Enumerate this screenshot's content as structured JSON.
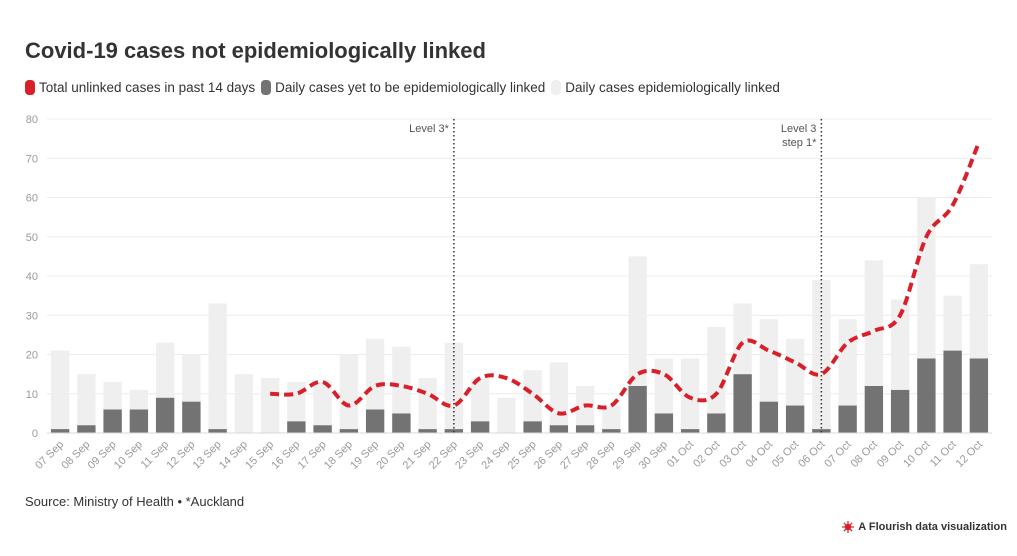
{
  "title": "Covid-19 cases not epidemiologically linked",
  "legend": [
    {
      "label": "Total unlinked cases in past 14 days",
      "color": "#d8202a"
    },
    {
      "label": "Daily cases yet to be epidemiologically linked",
      "color": "#737373"
    },
    {
      "label": "Daily cases epidemiologically linked",
      "color": "#efefef"
    }
  ],
  "source": "Source: Ministry of Health • *Auckland",
  "credit": "A Flourish data visualization",
  "chart_data": {
    "type": "bar",
    "stacked": true,
    "title": "Covid-19 cases not epidemiologically linked",
    "ylim": [
      0,
      80
    ],
    "yticks": [
      0,
      10,
      20,
      30,
      40,
      50,
      60,
      70,
      80
    ],
    "grid": true,
    "legend_position": "top",
    "categories": [
      "07 Sep",
      "08 Sep",
      "09 Sep",
      "10 Sep",
      "11 Sep",
      "12 Sep",
      "13 Sep",
      "14 Sep",
      "15 Sep",
      "16 Sep",
      "17 Sep",
      "18 Sep",
      "19 Sep",
      "20 Sep",
      "21 Sep",
      "22 Sep",
      "23 Sep",
      "24 Sep",
      "25 Sep",
      "26 Sep",
      "27 Sep",
      "28 Sep",
      "29 Sep",
      "30 Sep",
      "01 Oct",
      "02 Oct",
      "03 Oct",
      "04 Oct",
      "05 Oct",
      "06 Oct",
      "07 Oct",
      "08 Oct",
      "09 Oct",
      "10 Oct",
      "11 Oct",
      "12 Oct"
    ],
    "series": [
      {
        "name": "Daily cases yet to be epidemiologically linked",
        "color": "#737373",
        "values": [
          1,
          2,
          6,
          6,
          9,
          8,
          1,
          0,
          0,
          3,
          2,
          1,
          6,
          5,
          1,
          1,
          3,
          0,
          3,
          2,
          2,
          1,
          12,
          5,
          1,
          5,
          15,
          8,
          7,
          1,
          7,
          12,
          11,
          19,
          21,
          19
        ]
      },
      {
        "name": "Daily cases epidemiologically linked",
        "color": "#efefef",
        "values": [
          20,
          13,
          7,
          5,
          14,
          12,
          32,
          15,
          14,
          10,
          11,
          19,
          18,
          17,
          13,
          22,
          11,
          9,
          13,
          16,
          10,
          6,
          33,
          14,
          18,
          22,
          18,
          21,
          17,
          38,
          22,
          32,
          23,
          41,
          14,
          24
        ]
      },
      {
        "name": "Total unlinked cases in past 14 days",
        "type": "line",
        "dashed": true,
        "color": "#d8202a",
        "values": [
          null,
          null,
          null,
          null,
          null,
          null,
          null,
          null,
          10,
          10,
          13,
          7,
          12,
          12,
          10,
          7,
          14,
          14,
          10,
          5,
          7,
          7,
          15,
          15,
          9,
          10,
          23,
          21,
          18,
          15,
          23,
          26,
          30,
          50,
          58,
          74
        ]
      }
    ],
    "annotations": [
      {
        "x": "22 Sep",
        "lines": [
          "Level 3*"
        ]
      },
      {
        "x": "06 Oct",
        "lines": [
          "Level 3",
          "step 1*"
        ]
      }
    ]
  }
}
